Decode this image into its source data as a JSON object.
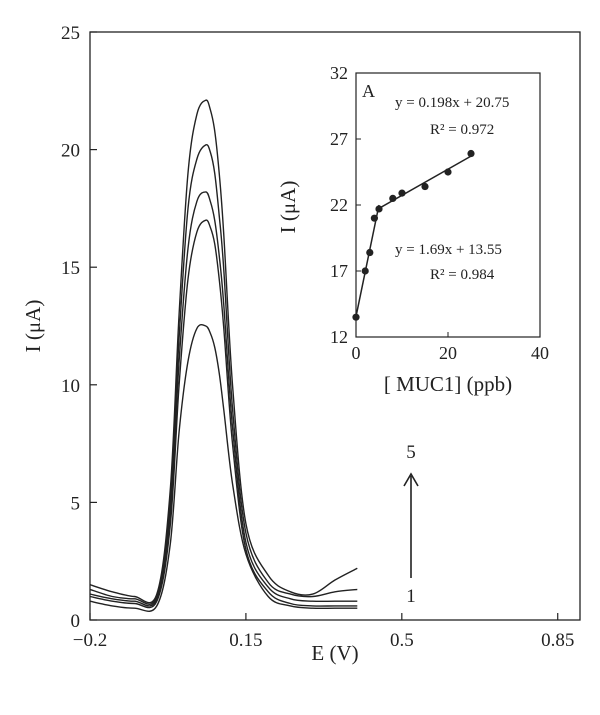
{
  "chart_data": [
    {
      "type": "line",
      "xlabel": "E (V)",
      "ylabel": "I (μA)",
      "xlim": [
        -0.2,
        0.9
      ],
      "ylim": [
        0,
        25
      ],
      "x_ticks": [
        "−0.2",
        "0.15",
        "0.5",
        "0.85"
      ],
      "y_ticks": [
        "0",
        "5",
        "10",
        "15",
        "20",
        "25"
      ],
      "arrow_labels": {
        "start": "1",
        "end": "5"
      },
      "series": [
        {
          "x": [
            -0.2,
            -0.15,
            -0.1,
            -0.05,
            -0.02,
            0.0,
            0.02,
            0.04,
            0.06,
            0.07,
            0.08,
            0.09,
            0.1,
            0.12,
            0.15,
            0.2,
            0.25,
            0.3,
            0.35,
            0.4
          ],
          "values": [
            0.8,
            0.6,
            0.5,
            0.6,
            3.2,
            8.0,
            11.0,
            12.4,
            12.5,
            12.2,
            11.6,
            10.5,
            9.0,
            5.8,
            2.8,
            1.0,
            0.6,
            0.5,
            0.5,
            0.5
          ]
        },
        {
          "x": [
            -0.2,
            -0.15,
            -0.1,
            -0.05,
            -0.02,
            0.0,
            0.02,
            0.04,
            0.06,
            0.07,
            0.08,
            0.09,
            0.1,
            0.12,
            0.15,
            0.2,
            0.25,
            0.3,
            0.35,
            0.4
          ],
          "values": [
            1.0,
            0.8,
            0.7,
            0.8,
            4.0,
            10.0,
            14.5,
            16.5,
            17.0,
            16.7,
            16.0,
            14.5,
            12.5,
            7.5,
            3.0,
            1.2,
            0.7,
            0.6,
            0.6,
            0.6
          ]
        },
        {
          "x": [
            -0.2,
            -0.15,
            -0.1,
            -0.05,
            -0.02,
            0.0,
            0.02,
            0.04,
            0.06,
            0.07,
            0.08,
            0.09,
            0.1,
            0.12,
            0.15,
            0.2,
            0.25,
            0.3,
            0.35,
            0.4
          ],
          "values": [
            1.1,
            0.9,
            0.8,
            0.9,
            4.5,
            11.0,
            15.8,
            17.8,
            18.2,
            17.8,
            17.0,
            15.5,
            13.5,
            8.2,
            3.3,
            1.4,
            0.9,
            0.8,
            0.8,
            0.8
          ]
        },
        {
          "x": [
            -0.2,
            -0.15,
            -0.1,
            -0.05,
            -0.02,
            0.0,
            0.02,
            0.04,
            0.06,
            0.07,
            0.08,
            0.09,
            0.1,
            0.12,
            0.15,
            0.2,
            0.25,
            0.3,
            0.35,
            0.4
          ],
          "values": [
            1.3,
            1.0,
            0.9,
            1.0,
            5.0,
            12.0,
            17.5,
            19.6,
            20.2,
            19.9,
            19.0,
            17.2,
            15.0,
            9.0,
            3.7,
            1.6,
            1.1,
            1.0,
            1.2,
            1.3
          ]
        },
        {
          "x": [
            -0.2,
            -0.15,
            -0.1,
            -0.05,
            -0.02,
            0.0,
            0.02,
            0.04,
            0.06,
            0.07,
            0.08,
            0.09,
            0.1,
            0.12,
            0.15,
            0.2,
            0.25,
            0.3,
            0.35,
            0.4
          ],
          "values": [
            1.5,
            1.2,
            1.0,
            1.1,
            5.5,
            13.0,
            19.0,
            21.5,
            22.1,
            21.7,
            20.8,
            19.0,
            16.5,
            10.0,
            4.1,
            1.9,
            1.2,
            1.1,
            1.7,
            2.2
          ]
        }
      ]
    },
    {
      "type": "scatter",
      "panel_label": "A",
      "xlabel": "[ MUC1] (ppb)",
      "ylabel": "I (μA)",
      "xlim": [
        0,
        40
      ],
      "ylim": [
        12,
        32
      ],
      "x_ticks": [
        0,
        20,
        40
      ],
      "y_ticks": [
        12,
        17,
        22,
        27,
        32
      ],
      "points": {
        "x": [
          0,
          2,
          3,
          4,
          5,
          8,
          10,
          15,
          20,
          25
        ],
        "y": [
          13.5,
          17.0,
          18.4,
          21.0,
          21.7,
          22.5,
          22.9,
          23.4,
          24.5,
          25.9
        ]
      },
      "fits": [
        {
          "range": [
            0,
            5
          ],
          "slope": 1.69,
          "intercept": 13.55,
          "equation": "y = 1.69x + 13.55",
          "r2": "R² = 0.984"
        },
        {
          "range": [
            5,
            25
          ],
          "slope": 0.198,
          "intercept": 20.75,
          "equation": "y = 0.198x + 20.75",
          "r2": "R² = 0.972"
        }
      ]
    }
  ]
}
